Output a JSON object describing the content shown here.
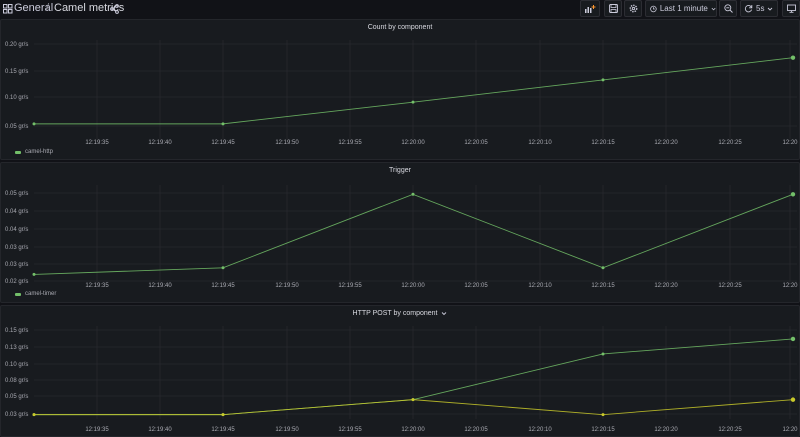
{
  "breadcrumb": {
    "folder": "General",
    "separator": "/",
    "dashboard": "Camel metrics"
  },
  "toolbar": {
    "time_range": "Last 1 minute",
    "refresh_interval": "5s"
  },
  "x_ticks": [
    "12:19:35",
    "12:19:40",
    "12:19:45",
    "12:19:50",
    "12:19:55",
    "12:20:00",
    "12:20:05",
    "12:20:10",
    "12:20:15",
    "12:20:20",
    "12:20:25",
    "12:20"
  ],
  "colors": {
    "green": "#73bf69",
    "yellow": "#c9c92a",
    "grid": "#2c2e33"
  },
  "panels": [
    {
      "title": "Count by component",
      "legend": "camel-http"
    },
    {
      "title": "Trigger",
      "legend": "camel-timer"
    },
    {
      "title": "HTTP POST by component",
      "dropdown_icon": "chevron-down-icon"
    }
  ],
  "chart_data": [
    {
      "type": "line",
      "title": "Count by component",
      "x": [
        "12:19:30",
        "12:19:45",
        "12:20:00",
        "12:20:15",
        "12:20:30"
      ],
      "y_ticks": [
        "0.20 gr/s",
        "0.15 gr/s",
        "0.10 gr/s",
        "0.05 gr/s"
      ],
      "ylim": [
        0.02,
        0.21
      ],
      "series": [
        {
          "name": "camel-http",
          "color": "#73bf69",
          "values": [
            0.044,
            0.044,
            0.087,
            0.131,
            0.175
          ]
        }
      ]
    },
    {
      "type": "line",
      "title": "Trigger",
      "x": [
        "12:19:30",
        "12:19:45",
        "12:20:00",
        "12:20:15",
        "12:20:30"
      ],
      "y_ticks": [
        "0.05 gr/s",
        "0.04 gr/s",
        "0.04 gr/s",
        "0.03 gr/s",
        "0.03 gr/s",
        "0.02 gr/s"
      ],
      "ylim": [
        0.02,
        0.052
      ],
      "series": [
        {
          "name": "camel-timer",
          "color": "#73bf69",
          "values": [
            0.0222,
            0.0244,
            0.0489,
            0.0244,
            0.0489
          ]
        }
      ]
    },
    {
      "type": "line",
      "title": "HTTP POST by component",
      "x": [
        "12:19:30",
        "12:19:45",
        "12:20:00",
        "12:20:15",
        "12:20:30"
      ],
      "y_ticks": [
        "0.15 gr/s",
        "0.13 gr/s",
        "0.10 gr/s",
        "0.08 gr/s",
        "0.05 gr/s",
        "0.03 gr/s"
      ],
      "ylim": [
        0.02,
        0.152
      ],
      "series": [
        {
          "color": "#73bf69",
          "values": [
            0.022,
            0.022,
            0.044,
            0.111,
            0.133
          ]
        },
        {
          "color": "#c9c92a",
          "values": [
            0.022,
            0.022,
            0.044,
            0.022,
            0.044
          ]
        }
      ]
    }
  ]
}
